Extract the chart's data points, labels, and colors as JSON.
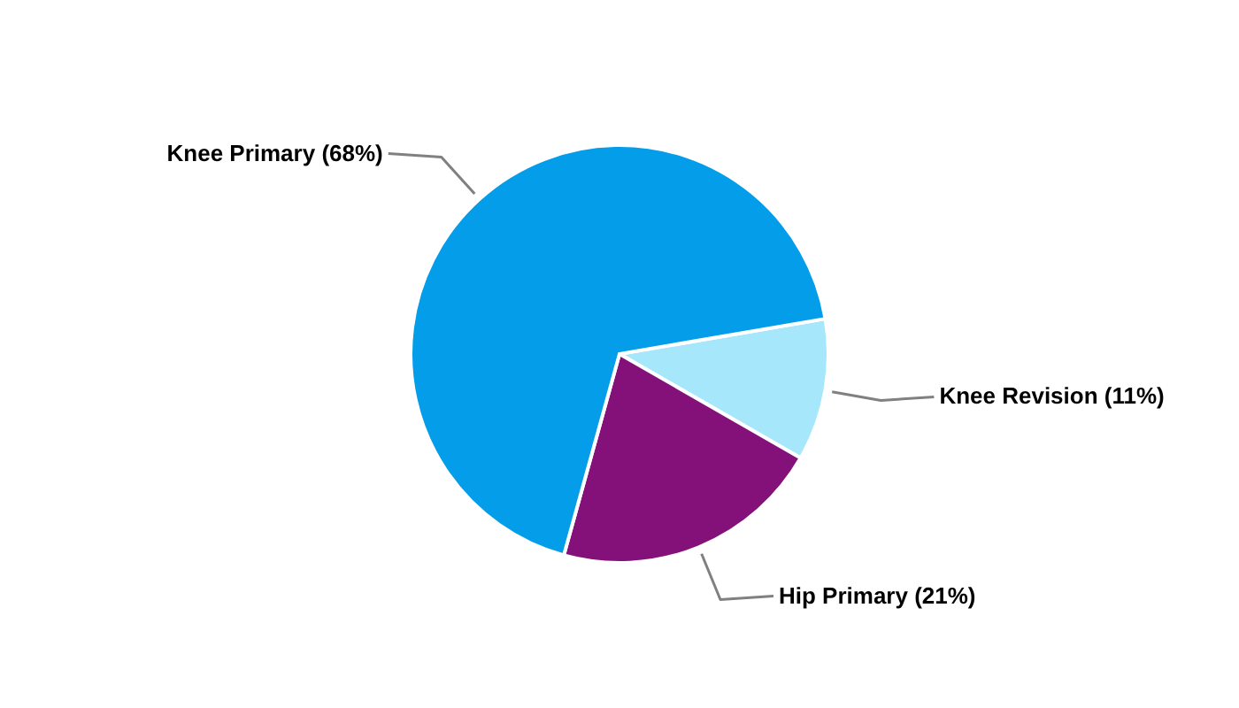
{
  "chart_data": {
    "type": "pie",
    "categories": [
      "Knee Revision (11%)",
      "Hip Primary (21%)",
      "Knee Primary (68%)"
    ],
    "values": [
      11,
      21,
      68
    ],
    "colors": [
      "#a6e7fc",
      "#84107a",
      "#039de9"
    ]
  }
}
